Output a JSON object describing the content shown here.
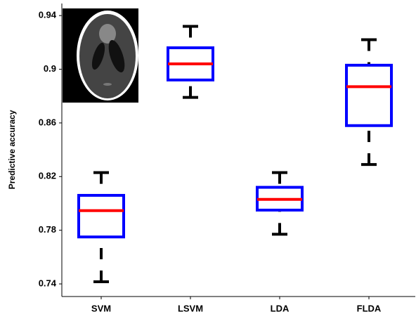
{
  "chart_data": {
    "type": "box",
    "y_label": "Predictive accuracy",
    "categories": [
      "SVM",
      "LSVM",
      "LDA",
      "FLDA"
    ],
    "boxes": [
      {
        "min": 0.7416,
        "q1": 0.775,
        "median": 0.7946,
        "q3": 0.806,
        "max": 0.823
      },
      {
        "min": 0.879,
        "q1": 0.892,
        "median": 0.904,
        "q3": 0.916,
        "max": 0.932
      },
      {
        "min": 0.777,
        "q1": 0.795,
        "median": 0.803,
        "q3": 0.812,
        "max": 0.823
      },
      {
        "min": 0.829,
        "q1": 0.858,
        "median": 0.887,
        "q3": 0.903,
        "max": 0.922
      }
    ],
    "box_color": "#0000ff",
    "median_color": "#ff0000",
    "whisker_color": "#000000",
    "ylim": [
      0.7306,
      0.949
    ],
    "yticks": [
      0.74,
      0.78,
      0.82,
      0.86,
      0.9,
      0.94
    ]
  }
}
